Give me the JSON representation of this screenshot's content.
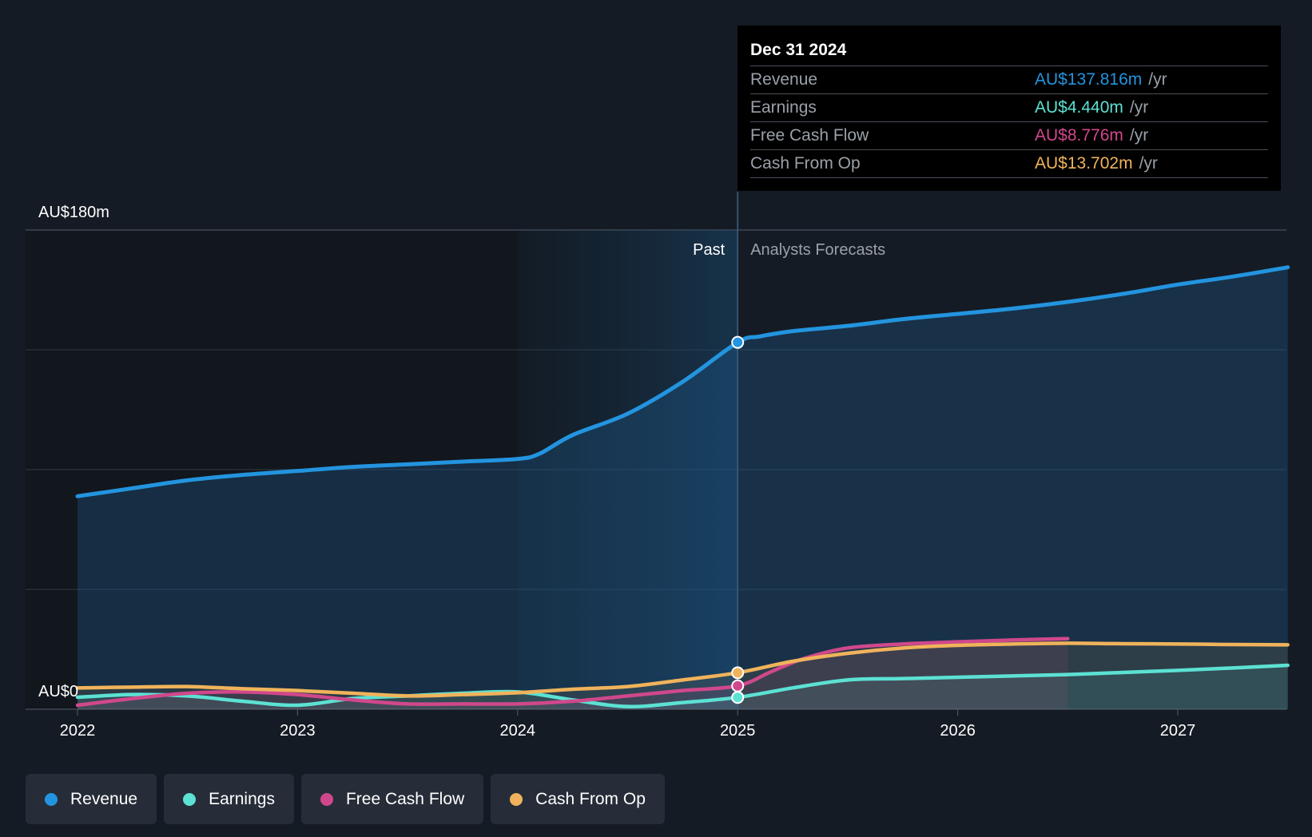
{
  "chart_data": {
    "type": "area",
    "x_ticks": [
      "2022",
      "2023",
      "2024",
      "2025",
      "2026",
      "2027"
    ],
    "x_range": [
      2022.0,
      2027.5
    ],
    "y_range": [
      0,
      180
    ],
    "y_labels": {
      "top": "AU$180m",
      "bottom": "AU$0"
    },
    "divider_x": 2025.0,
    "shaded_from_x": 2024.0,
    "past_label": "Past",
    "forecast_label": "Analysts Forecasts",
    "series": [
      {
        "name": "Revenue",
        "color": "#2394df",
        "x": [
          2022.0,
          2022.25,
          2022.5,
          2022.75,
          2023.0,
          2023.25,
          2023.5,
          2023.75,
          2024.0,
          2024.1,
          2024.25,
          2024.5,
          2024.75,
          2025.0,
          2025.1,
          2025.25,
          2025.5,
          2025.75,
          2026.0,
          2026.25,
          2026.5,
          2026.75,
          2027.0,
          2027.25,
          2027.5
        ],
        "y": [
          80,
          83,
          86,
          88,
          89.5,
          91,
          92,
          93,
          94,
          96,
          103,
          111,
          123,
          137.8,
          140,
          142,
          144,
          146.5,
          148.5,
          150.5,
          153,
          156,
          159.5,
          162.5,
          166
        ]
      },
      {
        "name": "Earnings",
        "color": "#5ce1d3",
        "x": [
          2022.0,
          2022.25,
          2022.5,
          2022.75,
          2023.0,
          2023.25,
          2023.5,
          2023.75,
          2024.0,
          2024.25,
          2024.5,
          2024.75,
          2025.0,
          2025.25,
          2025.5,
          2025.75,
          2026.0,
          2026.25,
          2026.5,
          2026.75,
          2027.0,
          2027.25,
          2027.5
        ],
        "y": [
          4.5,
          5.5,
          5.0,
          3.0,
          1.5,
          4.0,
          5.0,
          6.0,
          6.5,
          3.5,
          1.0,
          2.5,
          4.44,
          8,
          11,
          11.5,
          12,
          12.5,
          13,
          13.8,
          14.6,
          15.5,
          16.5
        ]
      },
      {
        "name": "Free Cash Flow",
        "color": "#d0488c",
        "x": [
          2022.0,
          2022.25,
          2022.5,
          2022.75,
          2023.0,
          2023.25,
          2023.5,
          2023.75,
          2024.0,
          2024.25,
          2024.5,
          2024.75,
          2025.0,
          2025.15,
          2025.3,
          2025.5,
          2025.75,
          2026.0,
          2026.25,
          2026.5
        ],
        "y": [
          1.5,
          4.0,
          6.0,
          6.5,
          5.5,
          3.5,
          2.0,
          2.0,
          2.0,
          3.0,
          5.0,
          7.0,
          8.776,
          14,
          19,
          23,
          24.5,
          25.3,
          26,
          26.5
        ]
      },
      {
        "name": "Cash From Op",
        "color": "#f0b35b",
        "x": [
          2022.0,
          2022.25,
          2022.5,
          2022.75,
          2023.0,
          2023.25,
          2023.5,
          2023.75,
          2024.0,
          2024.25,
          2024.5,
          2024.75,
          2025.0,
          2025.25,
          2025.5,
          2025.75,
          2026.0,
          2026.25,
          2026.5,
          2026.75,
          2027.0,
          2027.25,
          2027.5
        ],
        "y": [
          8.0,
          8.3,
          8.5,
          7.7,
          7.0,
          6.0,
          5.0,
          5.5,
          6.2,
          7.5,
          8.5,
          11,
          13.702,
          18,
          21,
          23,
          24,
          24.5,
          24.8,
          24.6,
          24.5,
          24.3,
          24.2
        ]
      }
    ],
    "highlight_x": 2025.0,
    "forecast_fill_end_x": {
      "Free Cash Flow": 2026.5,
      "Cash From Op": 2026.5
    }
  },
  "tooltip": {
    "date": "Dec 31 2024",
    "rows": [
      {
        "label": "Revenue",
        "value": "AU$137.816m",
        "unit": "/yr",
        "color": "#2394df"
      },
      {
        "label": "Earnings",
        "value": "AU$4.440m",
        "unit": "/yr",
        "color": "#5ce1d3"
      },
      {
        "label": "Free Cash Flow",
        "value": "AU$8.776m",
        "unit": "/yr",
        "color": "#d0488c"
      },
      {
        "label": "Cash From Op",
        "value": "AU$13.702m",
        "unit": "/yr",
        "color": "#f0b35b"
      }
    ]
  },
  "legend": [
    {
      "label": "Revenue",
      "color": "#2394df"
    },
    {
      "label": "Earnings",
      "color": "#5ce1d3"
    },
    {
      "label": "Free Cash Flow",
      "color": "#d0488c"
    },
    {
      "label": "Cash From Op",
      "color": "#f0b35b"
    }
  ]
}
